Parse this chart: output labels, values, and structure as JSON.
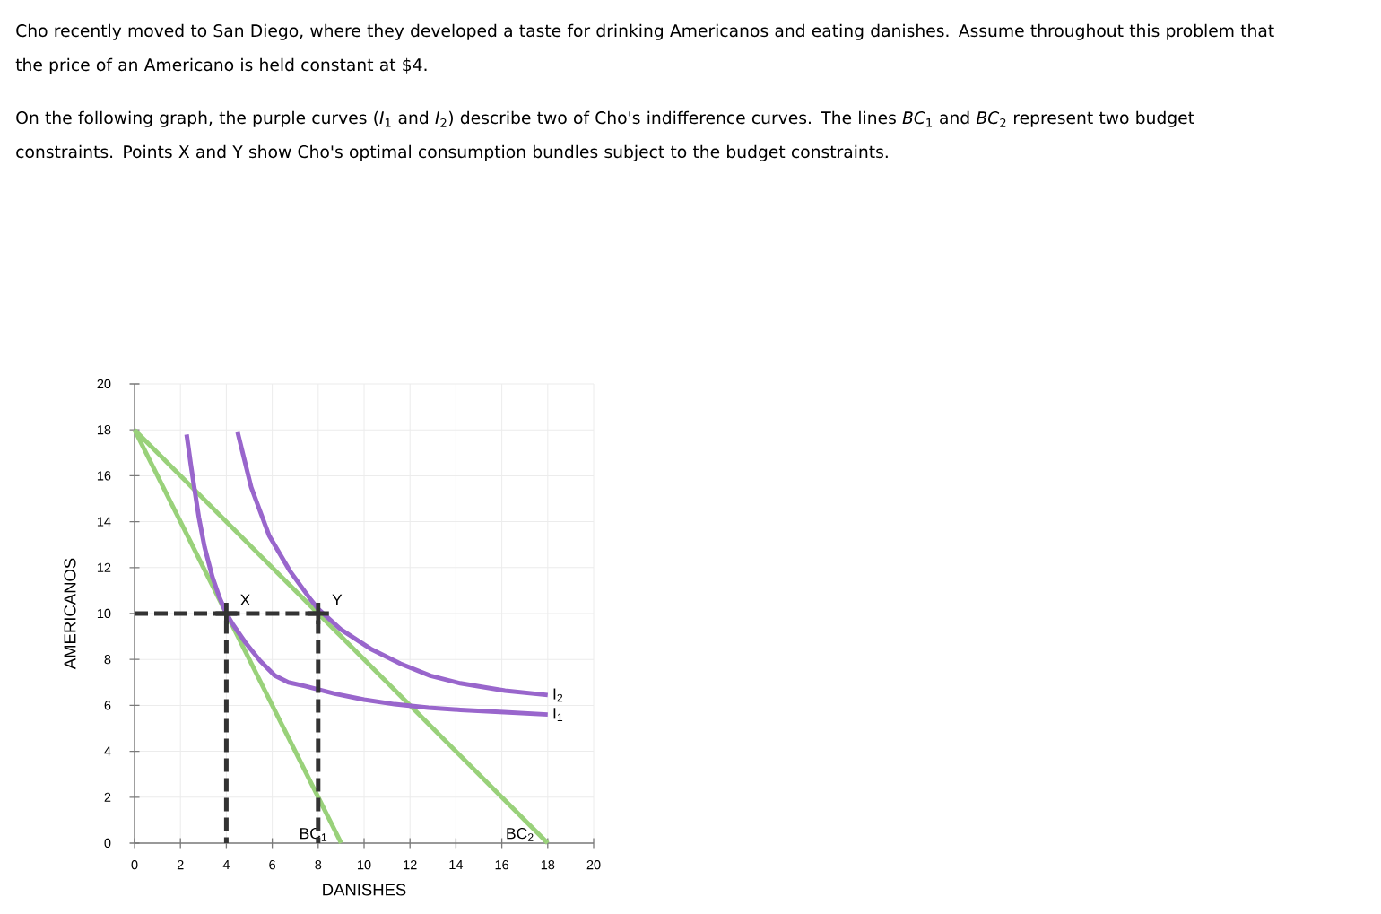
{
  "chart_data": {
    "type": "line",
    "title": "Cho recently moved to San Diego, where they developed a taste for drinking Americanos and eating danishes. Assume throughout this problem that the price of an Americano is held constant at $4.",
    "subtitle": "On the following graph, the purple curves (*I*$_{1}$ and *I*$_{2}$) describe two of Cho's indifference curves. The lines *BC*$_{1}$ and *BC*$_{2}$ represent two budget constraints. Points X and Y show Cho's optimal consumption bundles subject to the budget constraints.",
    "xlabel": "DANISHES",
    "ylabel": "AMERICANOS",
    "xlim": [
      0,
      20
    ],
    "ylim": [
      0,
      20
    ],
    "xticks": [
      0,
      2,
      4,
      6,
      8,
      10,
      12,
      14,
      16,
      18,
      20
    ],
    "yticks": [
      0,
      2,
      4,
      6,
      8,
      10,
      12,
      14,
      16,
      18,
      20
    ],
    "grid": true,
    "series": [
      {
        "name": "BC$_{1}$",
        "color": "#99d17a",
        "x": [
          0,
          9
        ],
        "values": [
          18,
          0
        ]
      },
      {
        "name": "BC$_{2}$",
        "color": "#99d17a",
        "x": [
          0,
          18
        ],
        "values": [
          18,
          0
        ]
      },
      {
        "name": "I$_{1}$",
        "color": "#9966cc",
        "x": [
          2.27,
          2.45,
          2.6,
          2.8,
          3.05,
          3.39,
          3.7,
          4.0,
          4.3,
          4.82,
          5.47,
          6.12,
          6.7,
          7.42,
          8.72,
          10.0,
          11.33,
          12.8,
          14.2,
          16.1,
          18.0
        ],
        "values": [
          17.8,
          16.5,
          15.5,
          14.2,
          12.9,
          11.6,
          10.7,
          10.0,
          9.5,
          8.75,
          7.94,
          7.29,
          7.0,
          6.84,
          6.51,
          6.25,
          6.05,
          5.9,
          5.8,
          5.7,
          5.6
        ]
      },
      {
        "name": "I$_{2}$",
        "color": "#9966cc",
        "x": [
          4.49,
          5.08,
          5.86,
          6.77,
          7.68,
          8.0,
          8.98,
          10.29,
          11.59,
          12.89,
          14.19,
          16.14,
          18.0
        ],
        "values": [
          17.9,
          15.5,
          13.4,
          11.85,
          10.6,
          10.2,
          9.31,
          8.46,
          7.81,
          7.29,
          6.96,
          6.64,
          6.45
        ]
      },
      {
        "type": "line",
        "line_style": "dashed",
        "color": "#333333",
        "x": [
          0,
          4,
          4
        ],
        "values": [
          10,
          10,
          0
        ]
      },
      {
        "type": "line",
        "line_style": "dashed",
        "color": "#333333",
        "x": [
          4,
          8,
          8
        ],
        "values": [
          10,
          10,
          0
        ]
      },
      {
        "type": "scatter",
        "marker": "cross",
        "name": "X",
        "color": "#333333",
        "x": [
          4
        ],
        "values": [
          10
        ]
      },
      {
        "type": "scatter",
        "marker": "cross",
        "name": "Y",
        "color": "#333333",
        "x": [
          8
        ],
        "values": [
          10
        ]
      }
    ]
  }
}
